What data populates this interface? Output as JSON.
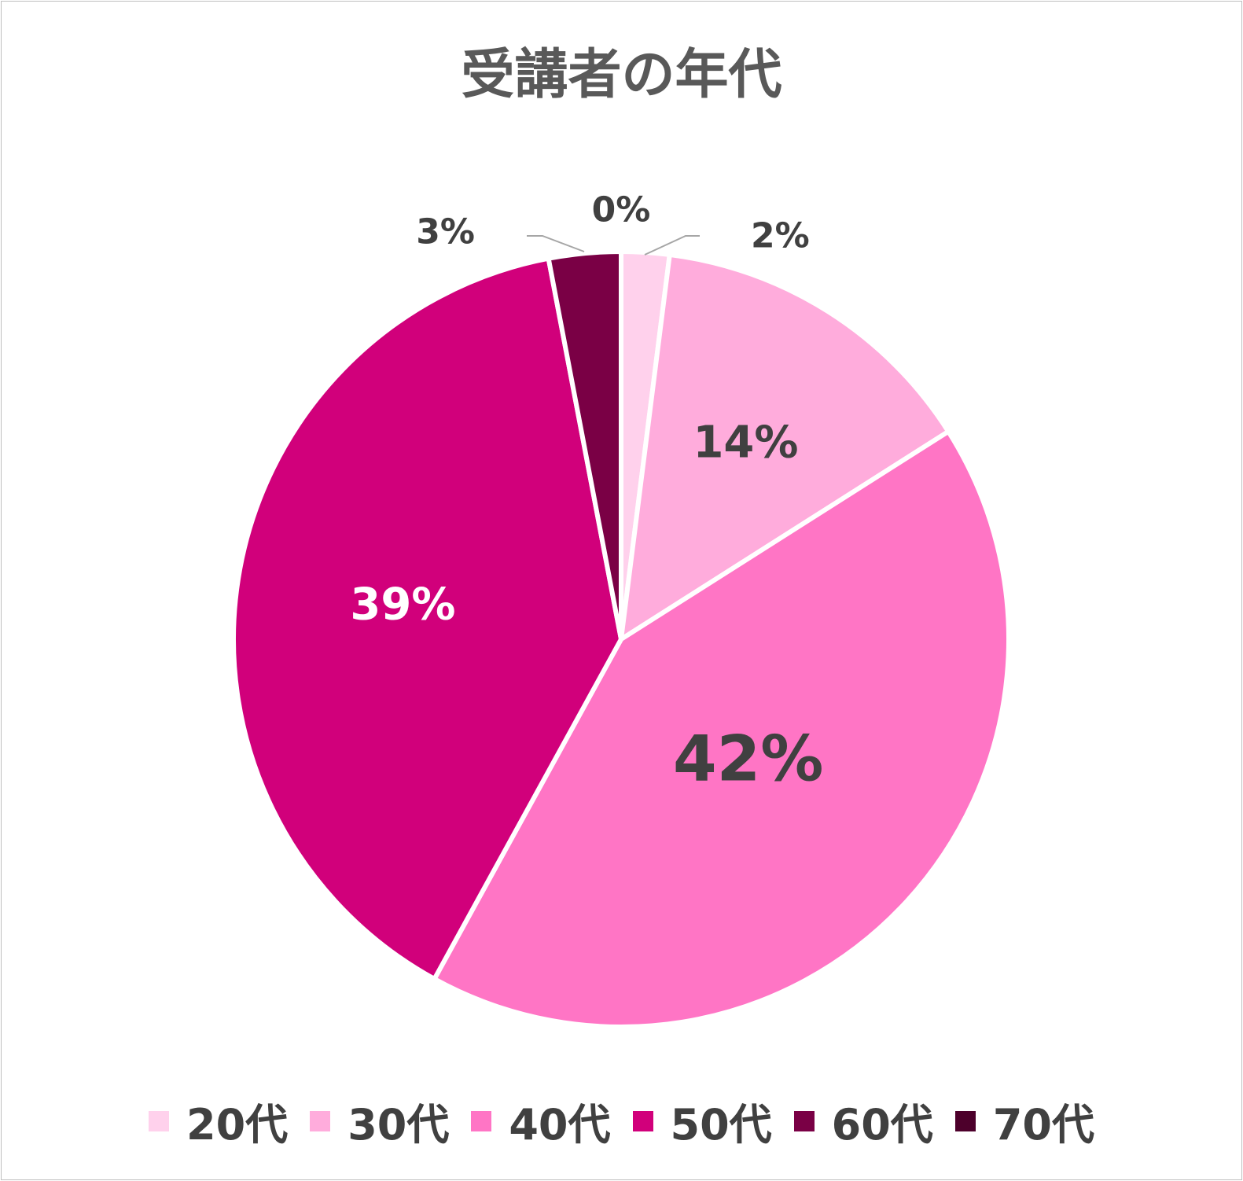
{
  "chart_data": {
    "type": "pie",
    "title": "受講者の年代",
    "categories": [
      "20代",
      "30代",
      "40代",
      "50代",
      "60代",
      "70代"
    ],
    "values": [
      2,
      14,
      42,
      39,
      3,
      0
    ],
    "labels": [
      "2%",
      "14%",
      "42%",
      "39%",
      "3%",
      "0%"
    ],
    "colors": [
      "#ffd1ec",
      "#ffacdc",
      "#ff75c5",
      "#d1007b",
      "#7a0045",
      "#4d002b"
    ],
    "legend": "bottom",
    "start_angle": "12 o'clock",
    "direction": "clockwise"
  }
}
